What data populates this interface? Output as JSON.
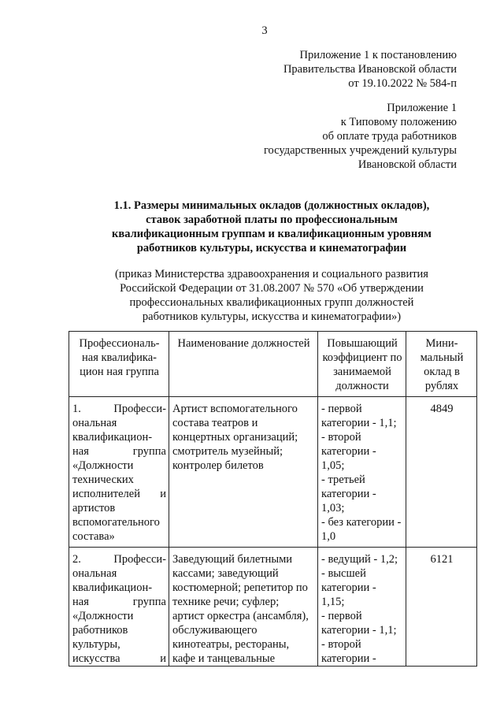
{
  "page_number": "3",
  "appendix_decree": [
    "Приложение 1 к постановлению",
    "Правительства Ивановской области",
    "от 19.10.2022 № 584-п"
  ],
  "appendix_regulation": [
    "Приложение 1",
    "к Типовому положению",
    "об оплате труда работников",
    "государственных учреждений культуры",
    "Ивановской области"
  ],
  "title": [
    "1.1. Размеры минимальных окладов (должностных окладов),",
    "ставок заработной платы по профессиональным",
    "квалификационным группам и квалификационным уровням",
    "работников культуры, искусства и кинематографии"
  ],
  "subtitle": [
    "(приказ Министерства здравоохранения и социального развития",
    "Российской Федерации от 31.08.2007 № 570 «Об утверждении",
    "профессиональных квалификационных групп должностей",
    "работников культуры, искусства и кинематографии»)"
  ],
  "table": {
    "headers": [
      [
        "Профессиональ-",
        "ная квалифика-",
        "цион ная группа"
      ],
      [
        "Наименование должностей"
      ],
      [
        "Повышающий",
        "коэффициент по",
        "занимаемой",
        "должности"
      ],
      [
        "Мини-",
        "мальный",
        "оклад в",
        "рублях"
      ]
    ],
    "rows": [
      {
        "group": [
          [
            "1.",
            "Професси-"
          ],
          [
            "ональная"
          ],
          [
            "квалификацион-"
          ],
          [
            "ная",
            "группа"
          ],
          [
            "«Должности"
          ],
          [
            "технических"
          ],
          [
            "исполнителей",
            "и"
          ],
          [
            "артистов"
          ],
          [
            "вспомогательного"
          ],
          [
            "состава»"
          ]
        ],
        "positions": [
          "Артист вспомогательного",
          "состава театров и",
          "концертных организаций;",
          "смотритель музейный;",
          "контролер билетов"
        ],
        "coefficients": [
          "- первой",
          "категории - 1,1;",
          "- второй",
          "категории -",
          "1,05;",
          "- третьей",
          "категории -",
          "1,03;",
          "- без категории -",
          "1,0"
        ],
        "salary": "4849"
      },
      {
        "group": [
          [
            "2.",
            "Професси-"
          ],
          [
            "ональная"
          ],
          [
            "квалификацион-"
          ],
          [
            "ная",
            "группа"
          ],
          [
            "«Должности"
          ],
          [
            "работников"
          ],
          [
            "культуры,"
          ],
          [
            "искусства",
            "и"
          ]
        ],
        "positions": [
          "Заведующий билетными",
          "кассами; заведующий",
          "костюмерной; репетитор по",
          "технике речи; суфлер;",
          "артист оркестра (ансамбля),",
          "обслуживающего",
          "кинотеатры, рестораны,",
          "кафе и танцевальные"
        ],
        "coefficients": [
          "- ведущий - 1,2;",
          "- высшей",
          "категории -",
          "1,15;",
          "- первой",
          "категории - 1,1;",
          "- второй",
          "категории -"
        ],
        "salary": "6121"
      }
    ]
  }
}
